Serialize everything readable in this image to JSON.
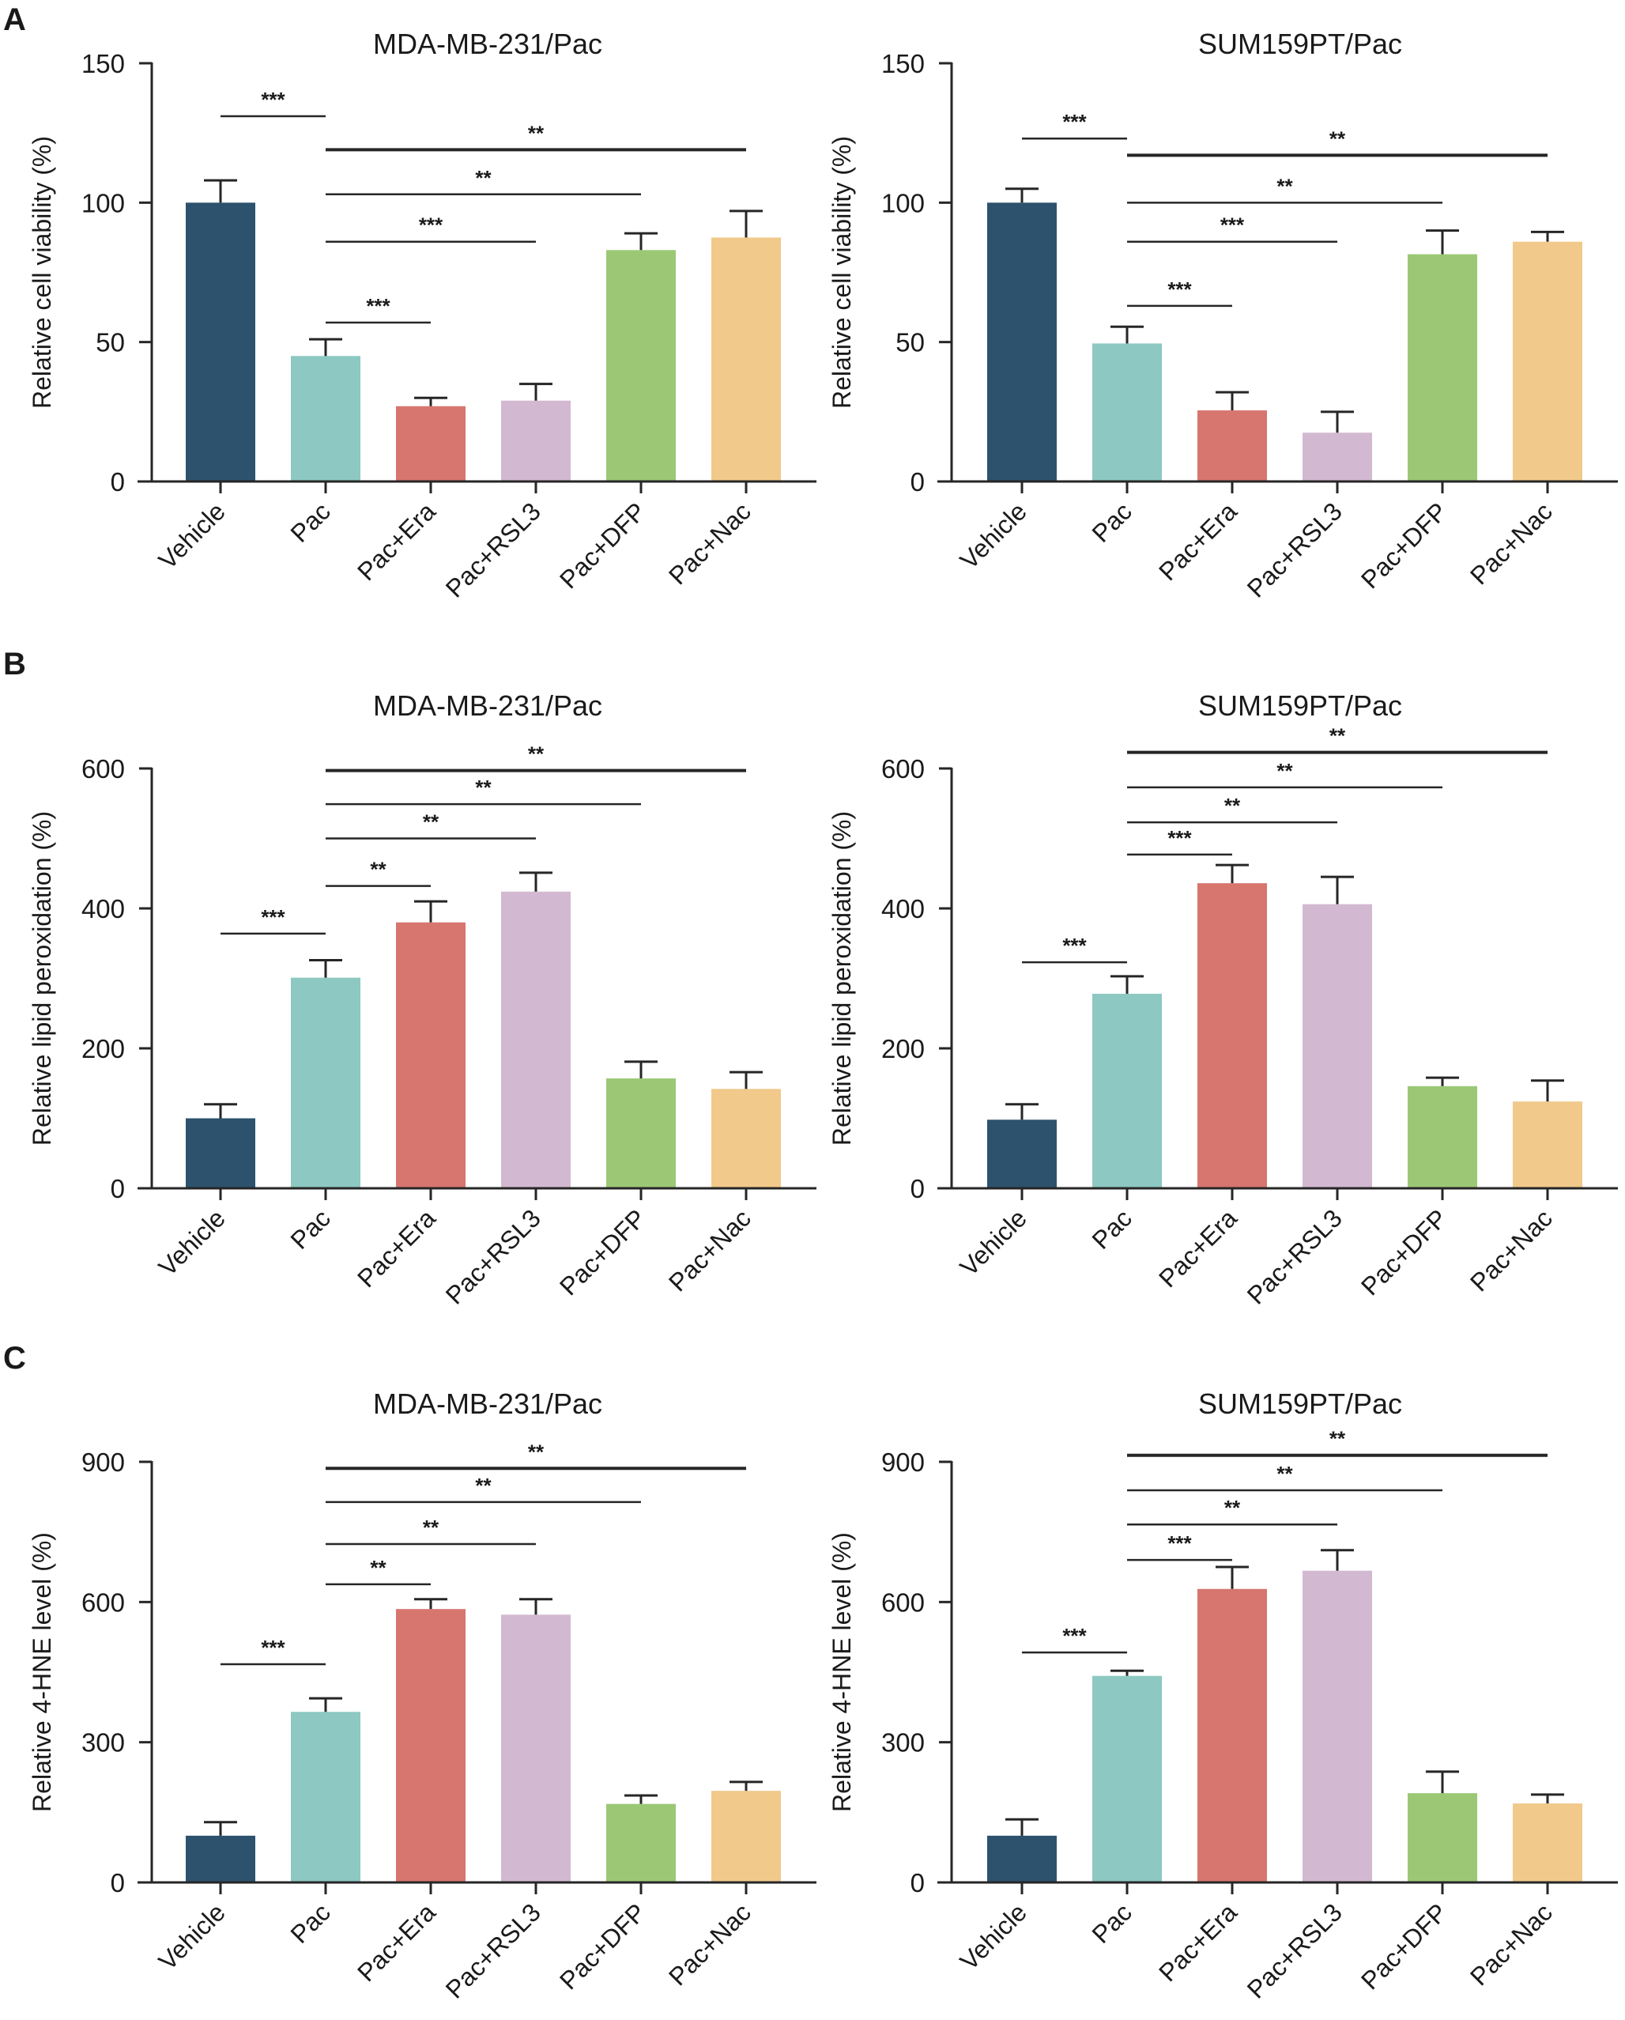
{
  "figure": {
    "panel_letters": [
      "A",
      "B",
      "C"
    ],
    "colors": {
      "Vehicle": "#2C526D",
      "Pac": "#8DC8C2",
      "Pac+Era": "#D7756F",
      "Pac+RSL3": "#D2B9D1",
      "Pac+DFP": "#9CC875",
      "Pac+Nac": "#F1C98B",
      "axis": "#262626"
    }
  },
  "chart_data": [
    {
      "id": "A-left",
      "panel": "A",
      "type": "bar",
      "title": "MDA-MB-231/Pac",
      "xlabel": "",
      "ylabel": "Relative cell viability (%)",
      "ylim": [
        0,
        150
      ],
      "yticks": [
        0,
        50,
        100,
        150
      ],
      "categories": [
        "Vehicle",
        "Pac",
        "Pac+Era",
        "Pac+RSL3",
        "Pac+DFP",
        "Pac+Nac"
      ],
      "values": [
        100,
        45,
        27,
        29,
        83,
        87.5
      ],
      "error_upper": [
        108,
        51,
        30,
        35,
        89,
        97
      ],
      "significance": [
        {
          "from": "Vehicle",
          "to": "Pac",
          "label": "***",
          "y": 131
        },
        {
          "from": "Pac",
          "to": "Pac+Nac",
          "label": "**",
          "y": 119
        },
        {
          "from": "Pac",
          "to": "Pac+DFP",
          "label": "**",
          "y": 103
        },
        {
          "from": "Pac",
          "to": "Pac+RSL3",
          "label": "***",
          "y": 86
        },
        {
          "from": "Pac",
          "to": "Pac+Era",
          "label": "***",
          "y": 57
        }
      ]
    },
    {
      "id": "A-right",
      "panel": "A",
      "type": "bar",
      "title": "SUM159PT/Pac",
      "xlabel": "",
      "ylabel": "Relative cell viability (%)",
      "ylim": [
        0,
        150
      ],
      "yticks": [
        0,
        50,
        100,
        150
      ],
      "categories": [
        "Vehicle",
        "Pac",
        "Pac+Era",
        "Pac+RSL3",
        "Pac+DFP",
        "Pac+Nac"
      ],
      "values": [
        100,
        49.5,
        25.5,
        17.5,
        81.5,
        86
      ],
      "error_upper": [
        105,
        55.5,
        32,
        25,
        90,
        89.5
      ],
      "significance": [
        {
          "from": "Vehicle",
          "to": "Pac",
          "label": "***",
          "y": 123
        },
        {
          "from": "Pac",
          "to": "Pac+Nac",
          "label": "**",
          "y": 117
        },
        {
          "from": "Pac",
          "to": "Pac+DFP",
          "label": "**",
          "y": 100
        },
        {
          "from": "Pac",
          "to": "Pac+RSL3",
          "label": "***",
          "y": 86
        },
        {
          "from": "Pac",
          "to": "Pac+Era",
          "label": "***",
          "y": 63
        }
      ]
    },
    {
      "id": "B-left",
      "panel": "B",
      "type": "bar",
      "title": "MDA-MB-231/Pac",
      "xlabel": "",
      "ylabel": "Relative lipid peroxidation (%)",
      "ylim": [
        0,
        600
      ],
      "yticks": [
        0,
        200,
        400,
        600
      ],
      "categories": [
        "Vehicle",
        "Pac",
        "Pac+Era",
        "Pac+RSL3",
        "Pac+DFP",
        "Pac+Nac"
      ],
      "values": [
        100,
        301,
        380,
        424,
        157,
        142
      ],
      "error_upper": [
        120,
        326,
        410,
        451,
        181,
        166
      ],
      "significance": [
        {
          "from": "Vehicle",
          "to": "Pac",
          "label": "***",
          "y": 364
        },
        {
          "from": "Pac",
          "to": "Pac+Nac",
          "label": "**",
          "y": 597
        },
        {
          "from": "Pac",
          "to": "Pac+DFP",
          "label": "**",
          "y": 549
        },
        {
          "from": "Pac",
          "to": "Pac+RSL3",
          "label": "**",
          "y": 500
        },
        {
          "from": "Pac",
          "to": "Pac+Era",
          "label": "**",
          "y": 432
        }
      ]
    },
    {
      "id": "B-right",
      "panel": "B",
      "type": "bar",
      "title": "SUM159PT/Pac",
      "xlabel": "",
      "ylabel": "Relative lipid peroxidation (%)",
      "ylim": [
        0,
        600
      ],
      "yticks": [
        0,
        200,
        400,
        600
      ],
      "categories": [
        "Vehicle",
        "Pac",
        "Pac+Era",
        "Pac+RSL3",
        "Pac+DFP",
        "Pac+Nac"
      ],
      "values": [
        98,
        278,
        436,
        406,
        146,
        124
      ],
      "error_upper": [
        120,
        303,
        462,
        445,
        158,
        154
      ],
      "significance": [
        {
          "from": "Vehicle",
          "to": "Pac",
          "label": "***",
          "y": 323
        },
        {
          "from": "Pac",
          "to": "Pac+Nac",
          "label": "**",
          "y": 623
        },
        {
          "from": "Pac",
          "to": "Pac+DFP",
          "label": "**",
          "y": 573
        },
        {
          "from": "Pac",
          "to": "Pac+RSL3",
          "label": "**",
          "y": 523
        },
        {
          "from": "Pac",
          "to": "Pac+Era",
          "label": "***",
          "y": 477
        }
      ]
    },
    {
      "id": "C-left",
      "panel": "C",
      "type": "bar",
      "title": "MDA-MB-231/Pac",
      "xlabel": "",
      "ylabel": "Relative 4-HNE level (%)",
      "ylim": [
        0,
        900
      ],
      "yticks": [
        0,
        300,
        600,
        900
      ],
      "categories": [
        "Vehicle",
        "Pac",
        "Pac+Era",
        "Pac+RSL3",
        "Pac+DFP",
        "Pac+Nac"
      ],
      "values": [
        100,
        365,
        585,
        573,
        168,
        196
      ],
      "error_upper": [
        129,
        394,
        606,
        606,
        186,
        215
      ],
      "significance": [
        {
          "from": "Vehicle",
          "to": "Pac",
          "label": "***",
          "y": 467
        },
        {
          "from": "Pac",
          "to": "Pac+Nac",
          "label": "**",
          "y": 886
        },
        {
          "from": "Pac",
          "to": "Pac+DFP",
          "label": "**",
          "y": 814
        },
        {
          "from": "Pac",
          "to": "Pac+RSL3",
          "label": "**",
          "y": 724
        },
        {
          "from": "Pac",
          "to": "Pac+Era",
          "label": "**",
          "y": 638
        }
      ]
    },
    {
      "id": "C-right",
      "panel": "C",
      "type": "bar",
      "title": "SUM159PT/Pac",
      "xlabel": "",
      "ylabel": "Relative 4-HNE level (%)",
      "ylim": [
        0,
        900
      ],
      "yticks": [
        0,
        300,
        600,
        900
      ],
      "categories": [
        "Vehicle",
        "Pac",
        "Pac+Era",
        "Pac+RSL3",
        "Pac+DFP",
        "Pac+Nac"
      ],
      "values": [
        100,
        442,
        628,
        667,
        191,
        169
      ],
      "error_upper": [
        135,
        453,
        675,
        711,
        237,
        188
      ],
      "significance": [
        {
          "from": "Vehicle",
          "to": "Pac",
          "label": "***",
          "y": 492
        },
        {
          "from": "Pac",
          "to": "Pac+Nac",
          "label": "**",
          "y": 914
        },
        {
          "from": "Pac",
          "to": "Pac+DFP",
          "label": "**",
          "y": 839
        },
        {
          "from": "Pac",
          "to": "Pac+RSL3",
          "label": "**",
          "y": 766
        },
        {
          "from": "Pac",
          "to": "Pac+Era",
          "label": "***",
          "y": 690
        }
      ]
    }
  ]
}
